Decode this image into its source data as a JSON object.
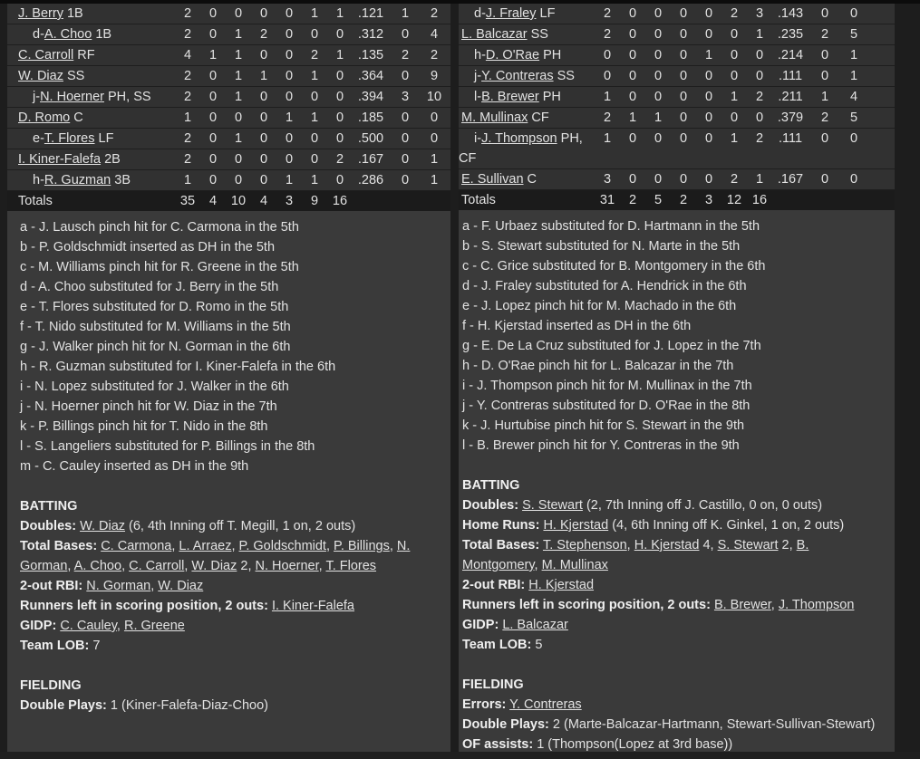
{
  "page": {
    "colors": {
      "background": "#1d1d1d",
      "panel": "#3a3a3a",
      "row": "#313131",
      "row_separator": "#1e1e1e",
      "totals_row": "#1b1b1b",
      "text": "#e2e2e2",
      "top_border": "#0c0c0c",
      "bottom_border": "#1f1f1f"
    }
  },
  "left": {
    "table": {
      "rows": [
        {
          "sub": false,
          "prefix": "",
          "name": "J. Berry",
          "pos": "1B",
          "stats": [
            "2",
            "0",
            "0",
            "0",
            "0",
            "1",
            "1",
            ".121",
            "1",
            "2"
          ]
        },
        {
          "sub": true,
          "prefix": "d-",
          "name": "A. Choo",
          "pos": "1B",
          "stats": [
            "2",
            "0",
            "1",
            "2",
            "0",
            "0",
            "0",
            ".312",
            "0",
            "4"
          ]
        },
        {
          "sub": false,
          "prefix": "",
          "name": "C. Carroll",
          "pos": "RF",
          "stats": [
            "4",
            "1",
            "1",
            "0",
            "0",
            "2",
            "1",
            ".135",
            "2",
            "2"
          ]
        },
        {
          "sub": false,
          "prefix": "",
          "name": "W. Diaz",
          "pos": "SS",
          "stats": [
            "2",
            "0",
            "1",
            "1",
            "0",
            "1",
            "0",
            ".364",
            "0",
            "9"
          ]
        },
        {
          "sub": true,
          "prefix": "j-",
          "name": "N. Hoerner",
          "pos": "PH, SS",
          "stats": [
            "2",
            "0",
            "1",
            "0",
            "0",
            "0",
            "0",
            ".394",
            "3",
            "10"
          ]
        },
        {
          "sub": false,
          "prefix": "",
          "name": "D. Romo",
          "pos": "C",
          "stats": [
            "1",
            "0",
            "0",
            "0",
            "1",
            "1",
            "0",
            ".185",
            "0",
            "0"
          ]
        },
        {
          "sub": true,
          "prefix": "e-",
          "name": "T. Flores",
          "pos": "LF",
          "stats": [
            "2",
            "0",
            "1",
            "0",
            "0",
            "0",
            "0",
            ".500",
            "0",
            "0"
          ]
        },
        {
          "sub": false,
          "prefix": "",
          "name": "I. Kiner-Falefa",
          "pos": "2B",
          "stats": [
            "2",
            "0",
            "0",
            "0",
            "0",
            "0",
            "2",
            ".167",
            "0",
            "1"
          ]
        },
        {
          "sub": true,
          "prefix": "h-",
          "name": "R. Guzman",
          "pos": "3B",
          "stats": [
            "1",
            "0",
            "0",
            "0",
            "1",
            "1",
            "0",
            ".286",
            "0",
            "1"
          ]
        }
      ],
      "totals": {
        "label": "Totals",
        "stats": [
          "35",
          "4",
          "10",
          "4",
          "3",
          "9",
          "16",
          "",
          "",
          ""
        ]
      }
    },
    "notes": [
      "a - J. Lausch pinch hit for C. Carmona in the 5th",
      "b - P. Goldschmidt inserted as DH in the 5th",
      "c - M. Williams pinch hit for R. Greene in the 5th",
      "d - A. Choo substituted for J. Berry in the 5th",
      "e - T. Flores substituted for D. Romo in the 5th",
      "f - T. Nido substituted for M. Williams in the 5th",
      "g - J. Walker pinch hit for N. Gorman in the 6th",
      "h - R. Guzman substituted for I. Kiner-Falefa in the 6th",
      "i - N. Lopez substituted for J. Walker in the 6th",
      "j - N. Hoerner pinch hit for W. Diaz in the 7th",
      "k - P. Billings pinch hit for T. Nido in the 8th",
      "l - S. Langeliers substituted for P. Billings in the 8th",
      "m - C. Cauley inserted as DH in the 9th"
    ],
    "sections": [
      {
        "title": "BATTING",
        "lines": [
          {
            "label": "Doubles:",
            "segments": [
              {
                "t": "W. Diaz",
                "u": true
              },
              {
                "t": " (6, 4th Inning off T. Megill, 1 on, 2 outs)",
                "u": false
              }
            ]
          },
          {
            "label": "Total Bases:",
            "segments": [
              {
                "t": "C. Carmona",
                "u": true
              },
              {
                "t": ", ",
                "u": false
              },
              {
                "t": "L. Arraez",
                "u": true
              },
              {
                "t": ", ",
                "u": false
              },
              {
                "t": "P. Goldschmidt",
                "u": true
              },
              {
                "t": ", ",
                "u": false
              },
              {
                "t": "P. Billings",
                "u": true
              },
              {
                "t": ", ",
                "u": false
              },
              {
                "t": "N. Gorman",
                "u": true
              },
              {
                "t": ", ",
                "u": false
              },
              {
                "t": "A. Choo",
                "u": true
              },
              {
                "t": ", ",
                "u": false
              },
              {
                "t": "C. Carroll",
                "u": true
              },
              {
                "t": ", ",
                "u": false
              },
              {
                "t": "W. Diaz",
                "u": true
              },
              {
                "t": " 2, ",
                "u": false
              },
              {
                "t": "N. Hoerner",
                "u": true
              },
              {
                "t": ", ",
                "u": false
              },
              {
                "t": "T. Flores",
                "u": true
              }
            ]
          },
          {
            "label": "2-out RBI:",
            "segments": [
              {
                "t": "N. Gorman",
                "u": true
              },
              {
                "t": ", ",
                "u": false
              },
              {
                "t": "W. Diaz",
                "u": true
              }
            ]
          },
          {
            "label": "Runners left in scoring position, 2 outs:",
            "segments": [
              {
                "t": "I. Kiner-Falefa",
                "u": true
              }
            ]
          },
          {
            "label": "GIDP:",
            "segments": [
              {
                "t": "C. Cauley",
                "u": true
              },
              {
                "t": ", ",
                "u": false
              },
              {
                "t": "R. Greene",
                "u": true
              }
            ]
          },
          {
            "label": "Team LOB:",
            "segments": [
              {
                "t": "7",
                "u": false
              }
            ]
          }
        ]
      },
      {
        "title": "FIELDING",
        "lines": [
          {
            "label": "Double Plays:",
            "segments": [
              {
                "t": "1 (Kiner-Falefa-Diaz-Choo)",
                "u": false
              }
            ]
          }
        ]
      }
    ]
  },
  "right": {
    "table": {
      "rows": [
        {
          "sub": true,
          "prefix": "d-",
          "name": "J. Fraley",
          "pos": "LF",
          "stats": [
            "2",
            "0",
            "0",
            "0",
            "0",
            "2",
            "3",
            ".143",
            "0",
            "0"
          ]
        },
        {
          "sub": false,
          "prefix": "",
          "name": "L. Balcazar",
          "pos": "SS",
          "stats": [
            "2",
            "0",
            "0",
            "0",
            "0",
            "0",
            "1",
            ".235",
            "2",
            "5"
          ]
        },
        {
          "sub": true,
          "prefix": "h-",
          "name": "D. O'Rae",
          "pos": "PH",
          "stats": [
            "0",
            "0",
            "0",
            "0",
            "1",
            "0",
            "0",
            ".214",
            "0",
            "1"
          ]
        },
        {
          "sub": true,
          "prefix": "j-",
          "name": "Y. Contreras",
          "pos": "SS",
          "stats": [
            "0",
            "0",
            "0",
            "0",
            "0",
            "0",
            "0",
            ".111",
            "0",
            "1"
          ]
        },
        {
          "sub": true,
          "prefix": "l-",
          "name": "B. Brewer",
          "pos": "PH",
          "stats": [
            "1",
            "0",
            "0",
            "0",
            "0",
            "1",
            "2",
            ".211",
            "1",
            "4"
          ]
        },
        {
          "sub": false,
          "prefix": "",
          "name": "M. Mullinax",
          "pos": "CF",
          "stats": [
            "2",
            "1",
            "1",
            "0",
            "0",
            "0",
            "0",
            ".379",
            "2",
            "5"
          ]
        },
        {
          "sub": true,
          "prefix": "i-",
          "name": "J. Thompson",
          "pos": "PH, CF",
          "stats": [
            "1",
            "0",
            "0",
            "0",
            "0",
            "1",
            "2",
            ".111",
            "0",
            "0"
          ]
        },
        {
          "sub": false,
          "prefix": "",
          "name": "E. Sullivan",
          "pos": "C",
          "stats": [
            "3",
            "0",
            "0",
            "0",
            "0",
            "2",
            "1",
            ".167",
            "0",
            "0"
          ]
        }
      ],
      "totals": {
        "label": "Totals",
        "stats": [
          "31",
          "2",
          "5",
          "2",
          "3",
          "12",
          "16",
          "",
          "",
          ""
        ]
      }
    },
    "notes": [
      "a - F. Urbaez substituted for D. Hartmann in the 5th",
      "b - S. Stewart substituted for N. Marte in the 5th",
      "c - C. Grice substituted for B. Montgomery in the 6th",
      "d - J. Fraley substituted for A. Hendrick in the 6th",
      "e - J. Lopez pinch hit for M. Machado in the 6th",
      "f - H. Kjerstad inserted as DH in the 6th",
      "g - E. De La Cruz substituted for J. Lopez in the 7th",
      "h - D. O'Rae pinch hit for L. Balcazar in the 7th",
      "i - J. Thompson pinch hit for M. Mullinax in the 7th",
      "j - Y. Contreras substituted for D. O'Rae in the 8th",
      "k - J. Hurtubise pinch hit for S. Stewart in the 9th",
      "l - B. Brewer pinch hit for Y. Contreras in the 9th"
    ],
    "sections": [
      {
        "title": "BATTING",
        "lines": [
          {
            "label": "Doubles:",
            "segments": [
              {
                "t": "S. Stewart",
                "u": true
              },
              {
                "t": " (2, 7th Inning off J. Castillo, 0 on, 0 outs)",
                "u": false
              }
            ]
          },
          {
            "label": "Home Runs:",
            "segments": [
              {
                "t": "H. Kjerstad",
                "u": true
              },
              {
                "t": " (4, 6th Inning off K. Ginkel, 1 on, 2 outs)",
                "u": false
              }
            ]
          },
          {
            "label": "Total Bases:",
            "segments": [
              {
                "t": "T. Stephenson",
                "u": true
              },
              {
                "t": ", ",
                "u": false
              },
              {
                "t": "H. Kjerstad",
                "u": true
              },
              {
                "t": " 4, ",
                "u": false
              },
              {
                "t": "S. Stewart",
                "u": true
              },
              {
                "t": " 2, ",
                "u": false
              },
              {
                "t": "B. Montgomery",
                "u": true
              },
              {
                "t": ", ",
                "u": false
              },
              {
                "t": "M. Mullinax",
                "u": true
              }
            ]
          },
          {
            "label": "2-out RBI:",
            "segments": [
              {
                "t": "H. Kjerstad",
                "u": true
              }
            ]
          },
          {
            "label": "Runners left in scoring position, 2 outs:",
            "segments": [
              {
                "t": "B. Brewer",
                "u": true
              },
              {
                "t": ", ",
                "u": false
              },
              {
                "t": "J. Thompson",
                "u": true
              }
            ]
          },
          {
            "label": "GIDP:",
            "segments": [
              {
                "t": "L. Balcazar",
                "u": true
              }
            ]
          },
          {
            "label": "Team LOB:",
            "segments": [
              {
                "t": "5",
                "u": false
              }
            ]
          }
        ]
      },
      {
        "title": "FIELDING",
        "lines": [
          {
            "label": "Errors:",
            "segments": [
              {
                "t": "Y. Contreras",
                "u": true
              }
            ]
          },
          {
            "label": "Double Plays:",
            "segments": [
              {
                "t": "2 (Marte-Balcazar-Hartmann, Stewart-Sullivan-Stewart)",
                "u": false
              }
            ]
          },
          {
            "label": "OF assists:",
            "segments": [
              {
                "t": "1 (Thompson(Lopez at 3rd base))",
                "u": false
              }
            ]
          }
        ]
      }
    ]
  }
}
